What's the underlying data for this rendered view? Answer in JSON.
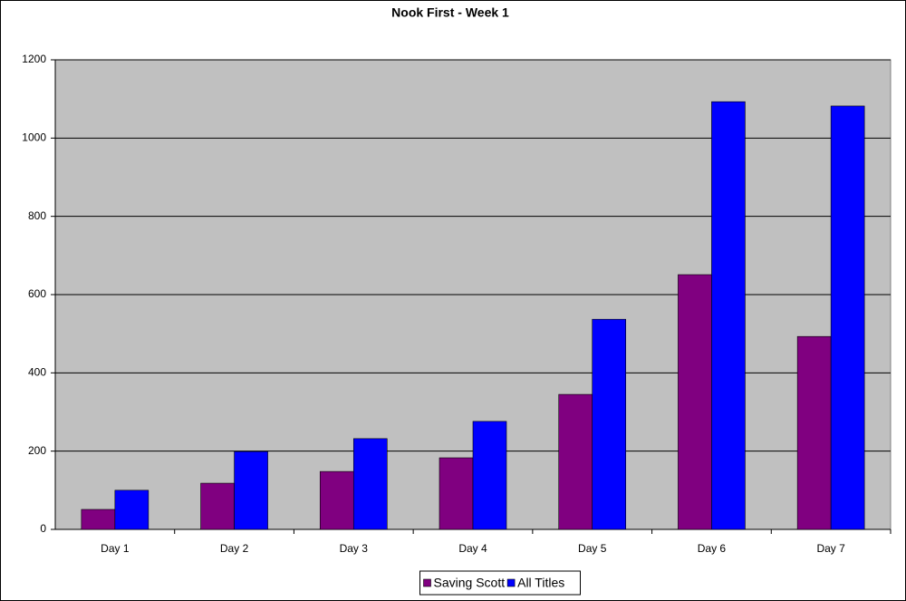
{
  "chart_data": {
    "type": "bar",
    "title": "Nook First - Week 1",
    "categories": [
      "Day 1",
      "Day 2",
      "Day 3",
      "Day 4",
      "Day 5",
      "Day 6",
      "Day 7"
    ],
    "series": [
      {
        "name": "Saving Scott",
        "color": "#800080",
        "values": [
          51,
          118,
          148,
          183,
          345,
          651,
          493
        ]
      },
      {
        "name": "All Titles",
        "color": "#0000ff",
        "values": [
          100,
          199,
          232,
          276,
          537,
          1093,
          1082
        ]
      }
    ],
    "ylim": [
      0,
      1200
    ],
    "yticks": [
      0,
      200,
      400,
      600,
      800,
      1000,
      1200
    ],
    "grid": true,
    "legend": "bottom"
  }
}
